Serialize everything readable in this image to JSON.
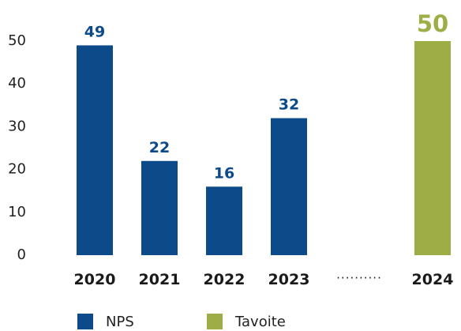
{
  "chart_data": {
    "type": "bar",
    "categories": [
      "2020",
      "2021",
      "2022",
      "2023",
      "2024"
    ],
    "series": [
      {
        "name": "NPS",
        "values": [
          49,
          22,
          16,
          32,
          null
        ],
        "color": "#0d4a8a"
      },
      {
        "name": "Tavoite",
        "values": [
          null,
          null,
          null,
          null,
          50
        ],
        "color": "#9ead46"
      }
    ],
    "ylim": [
      0,
      50
    ],
    "yticks": [
      0,
      10,
      20,
      30,
      40,
      50
    ],
    "gap_marker": "··········",
    "legend": "bottom",
    "grid": false
  }
}
